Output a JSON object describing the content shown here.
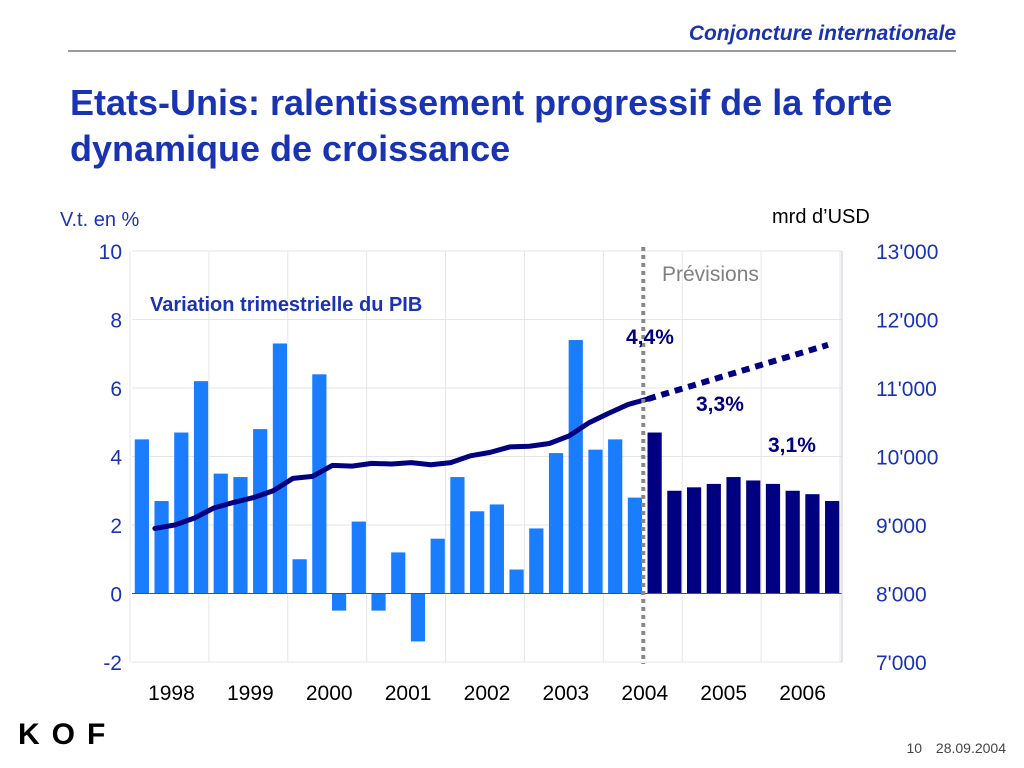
{
  "header": {
    "title": "Conjoncture internationale"
  },
  "slide": {
    "title": "Etats-Unis: ralentissement progressif de la forte dynamique de croissance"
  },
  "footer": {
    "page": "10",
    "date": "28.09.2004"
  },
  "logo": {
    "text": "KOF"
  },
  "colors": {
    "accent": "#1a33b3",
    "bar_actual": "#1a7cff",
    "bar_forecast": "#000080",
    "line": "#000080",
    "divider": "#888888",
    "forecast_label": "#808080"
  },
  "chart_data": {
    "type": "bar",
    "left_axis": {
      "label": "V.t. en %",
      "ylim": [
        -2,
        10
      ],
      "ticks": [
        "10",
        "8",
        "6",
        "4",
        "2",
        "0",
        "-2"
      ]
    },
    "right_axis": {
      "label": "mrd d’USD",
      "ylim": [
        7000,
        13000
      ],
      "ticks": [
        "13'000",
        "12'000",
        "11'000",
        "10'000",
        "9'000",
        "8'000",
        "7'000"
      ]
    },
    "x_tick_labels": [
      "1998",
      "1999",
      "2000",
      "2001",
      "2002",
      "2003",
      "2004",
      "2005",
      "2006"
    ],
    "grid": true,
    "series": [
      {
        "name": "Variation trimestrielle du PIB",
        "axis": "left",
        "kind": "bar",
        "quarters": 36,
        "forecast_from_index": 26,
        "values": [
          4.5,
          2.7,
          4.7,
          6.2,
          3.5,
          3.4,
          4.8,
          7.3,
          1.0,
          6.4,
          -0.5,
          2.1,
          -0.5,
          1.2,
          -1.4,
          1.6,
          3.4,
          2.4,
          2.6,
          0.7,
          1.9,
          4.1,
          7.4,
          4.2,
          4.5,
          2.8,
          4.7,
          3.0,
          3.1,
          3.2,
          3.4,
          3.3,
          3.2,
          3.0,
          2.9,
          2.7
        ]
      },
      {
        "axis": "right",
        "kind": "line",
        "values": [
          8950,
          9000,
          9100,
          9250,
          9330,
          9400,
          9500,
          9680,
          9710,
          9870,
          9860,
          9900,
          9890,
          9910,
          9880,
          9910,
          10010,
          10060,
          10140,
          10150,
          10190,
          10300,
          10490,
          10630,
          10760,
          10840
        ],
        "forecast_values": [
          10840,
          11630
        ]
      }
    ],
    "annotations": {
      "forecast": "Prévisions",
      "growth_2004": "4,4%",
      "growth_2005": "3,3%",
      "growth_2006": "3,1%"
    }
  }
}
